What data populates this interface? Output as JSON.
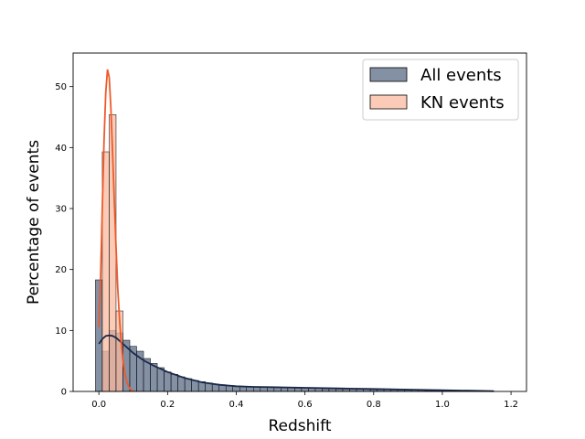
{
  "chart_data": {
    "type": "bar",
    "xlabel": "Redshift",
    "ylabel": "Percentage of events",
    "xlim": [
      -0.075,
      1.245
    ],
    "ylim": [
      0,
      55.5
    ],
    "xticks": [
      0.0,
      0.2,
      0.4,
      0.6,
      0.8,
      1.0,
      1.2
    ],
    "xtick_labels": [
      "0.0",
      "0.2",
      "0.4",
      "0.6",
      "0.8",
      "1.0",
      "1.2"
    ],
    "yticks": [
      0,
      10,
      20,
      30,
      40,
      50
    ],
    "ytick_labels": [
      "0",
      "10",
      "20",
      "30",
      "40",
      "50"
    ],
    "grid": false,
    "legend_position": "top-right",
    "series": [
      {
        "name": "All events",
        "kind": "histogram",
        "bin_width": 0.02,
        "bin_start": -0.01,
        "values": [
          18.3,
          6.6,
          10.0,
          9.6,
          8.4,
          7.4,
          6.6,
          5.4,
          4.6,
          3.9,
          3.2,
          2.8,
          2.4,
          2.1,
          1.8,
          1.6,
          1.4,
          1.2,
          1.1,
          1.0,
          0.9,
          0.85,
          0.8,
          0.75,
          0.7,
          0.7,
          0.65,
          0.6,
          0.6,
          0.55,
          0.55,
          0.5,
          0.5,
          0.45,
          0.45,
          0.4,
          0.4,
          0.4,
          0.35,
          0.35,
          0.3,
          0.3,
          0.3,
          0.25,
          0.25,
          0.2,
          0.2,
          0.2,
          0.15,
          0.15,
          0.15,
          0.1,
          0.1,
          0.1,
          0.1,
          0.05,
          0.05,
          0.05
        ],
        "kde_x": [
          0.0,
          0.01,
          0.02,
          0.03,
          0.04,
          0.05,
          0.07,
          0.1,
          0.13,
          0.16,
          0.2,
          0.25,
          0.3,
          0.35,
          0.4,
          0.45,
          0.5,
          0.6,
          0.7,
          0.8,
          0.9,
          1.0,
          1.1,
          1.15
        ],
        "kde_y": [
          7.8,
          8.6,
          9.1,
          9.2,
          9.1,
          8.8,
          7.8,
          6.3,
          5.1,
          4.2,
          3.2,
          2.2,
          1.5,
          1.1,
          0.85,
          0.75,
          0.7,
          0.6,
          0.5,
          0.4,
          0.3,
          0.2,
          0.1,
          0.05
        ],
        "bar_color": "#5b6b85",
        "line_color": "#1b2a4a"
      },
      {
        "name": "KN events",
        "kind": "histogram",
        "bin_width": 0.02,
        "bin_start": 0.01,
        "values": [
          39.3,
          45.4,
          13.2
        ],
        "kde_x": [
          0.0,
          0.005,
          0.01,
          0.015,
          0.02,
          0.025,
          0.03,
          0.035,
          0.04,
          0.045,
          0.05,
          0.055,
          0.06,
          0.065,
          0.07,
          0.075,
          0.08,
          0.085,
          0.09,
          0.095,
          0.1
        ],
        "kde_y": [
          10.5,
          19.0,
          30.0,
          41.0,
          49.0,
          52.8,
          51.5,
          46.5,
          39.0,
          31.0,
          23.5,
          17.0,
          12.0,
          8.0,
          5.2,
          3.2,
          1.9,
          1.0,
          0.5,
          0.2,
          0.05
        ],
        "bar_color": "#f9b99f",
        "line_color": "#ee5a2a"
      }
    ]
  }
}
